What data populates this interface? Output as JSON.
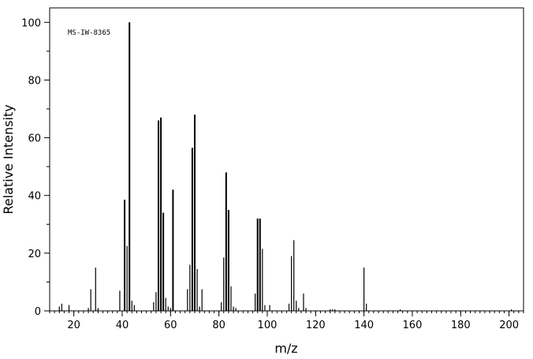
{
  "chart_data": {
    "type": "bar",
    "annotation": "MS-IW-8365",
    "xlabel": "m/z",
    "ylabel": "Relative Intensity",
    "xlim": [
      10,
      206
    ],
    "ylim": [
      0,
      105
    ],
    "xticks": [
      20,
      40,
      60,
      80,
      100,
      120,
      140,
      160,
      180,
      200
    ],
    "yticks": [
      0,
      20,
      40,
      60,
      80,
      100
    ],
    "x": [
      14,
      15,
      18,
      26,
      27,
      29,
      30,
      39,
      41,
      42,
      43,
      44,
      45,
      53,
      54,
      55,
      56,
      57,
      58,
      59,
      60,
      61,
      67,
      68,
      69,
      70,
      71,
      72,
      73,
      81,
      82,
      83,
      84,
      85,
      86,
      87,
      95,
      96,
      97,
      98,
      99,
      101,
      109,
      110,
      111,
      112,
      113,
      115,
      116,
      126,
      127,
      128,
      140,
      141,
      155,
      201
    ],
    "values": [
      1.5,
      2.5,
      2.0,
      1.0,
      7.5,
      15.0,
      1.0,
      7.0,
      38.5,
      22.5,
      100.0,
      3.5,
      2.0,
      3.0,
      6.5,
      66.0,
      67.0,
      34.0,
      4.5,
      1.5,
      1.0,
      42.0,
      7.5,
      16.0,
      56.5,
      68.0,
      14.5,
      1.5,
      7.5,
      3.0,
      18.5,
      48.0,
      35.0,
      8.5,
      1.5,
      1.0,
      6.0,
      32.0,
      32.0,
      21.5,
      2.0,
      2.0,
      2.5,
      19.0,
      24.5,
      3.5,
      1.0,
      6.0,
      1.0,
      0.5,
      0.5,
      0.5,
      15.0,
      2.5,
      0.5,
      0.5
    ]
  }
}
